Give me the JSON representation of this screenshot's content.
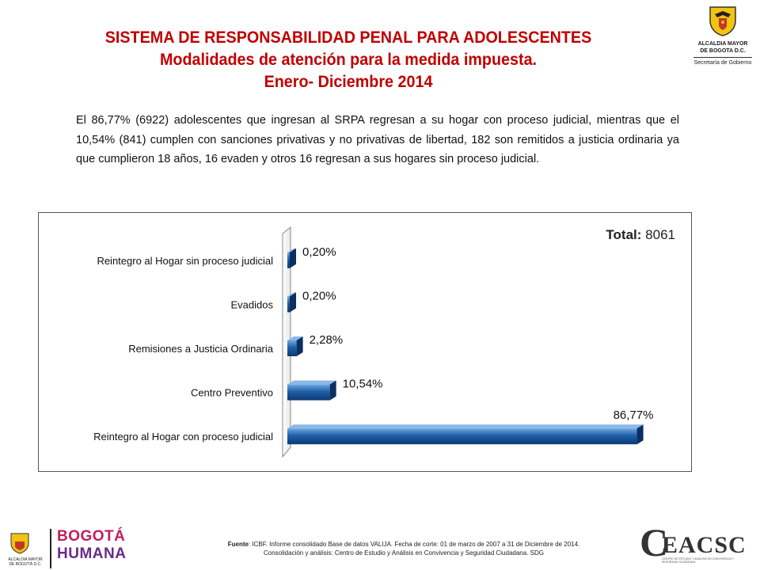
{
  "header": {
    "title_line1": "SISTEMA DE RESPONSABILIDAD PENAL PARA ADOLESCENTES",
    "title_line2": "Modalidades de atención para la medida impuesta.",
    "title_line3": "Enero- Diciembre 2014"
  },
  "logo_top": {
    "line1": "ALCALDIA MAYOR",
    "line2": "DE BOGOTA D.C.",
    "line3": "Secretaría de Gobierno"
  },
  "summary": "El 86,77% (6922) adolescentes que ingresan al SRPA regresan a su hogar con proceso judicial, mientras que el 10,54% (841) cumplen con sanciones privativas y no privativas de libertad, 182 son remitidos a justicia ordinaria ya que cumplieron 18 años, 16 evaden y otros 16 regresan a sus hogares sin proceso judicial.",
  "chart_data": {
    "type": "bar",
    "orientation": "horizontal",
    "total_label": "Total:",
    "total_value": "8061",
    "categories": [
      "Reintegro al Hogar sin proceso judicial",
      "Evadidos",
      "Remisiones a Justicia Ordinaria",
      "Centro Preventivo",
      "Reintegro al Hogar con proceso judicial"
    ],
    "values": [
      0.2,
      0.2,
      2.28,
      10.54,
      86.77
    ],
    "data_labels": [
      "0,20%",
      "0,20%",
      "2,28%",
      "10,54%",
      "86,77%"
    ],
    "bar_color": "#1f5fa8",
    "xlim": [
      0,
      90
    ],
    "grid": false,
    "legend": "none"
  },
  "footer": {
    "source_lead": "Fuente",
    "source_line1": ": ICBF. Informe consolidado Base de datos VALIJA. Fecha de corte: 01 de marzo de 2007 a 31 de Diciembre de 2014.",
    "source_line2": "Consolidación y análisis: Centro de Estudio y Análisis en Convivencia y Seguridad Ciudadana. SDG",
    "bogota_logo_top": "BOGOTÁ",
    "bogota_logo_bottom": "HUMANA",
    "alcaldia_small": "ALCALDÍA MAYOR DE BOGOTÁ D.C.",
    "ceacsc_c": "C",
    "ceacsc_word": "EACSC",
    "ceacsc_tag": "CENTRO DE ESTUDIO Y ANÁLISIS EN CONVIVENCIA Y SEGURIDAD CIUDADANA"
  }
}
